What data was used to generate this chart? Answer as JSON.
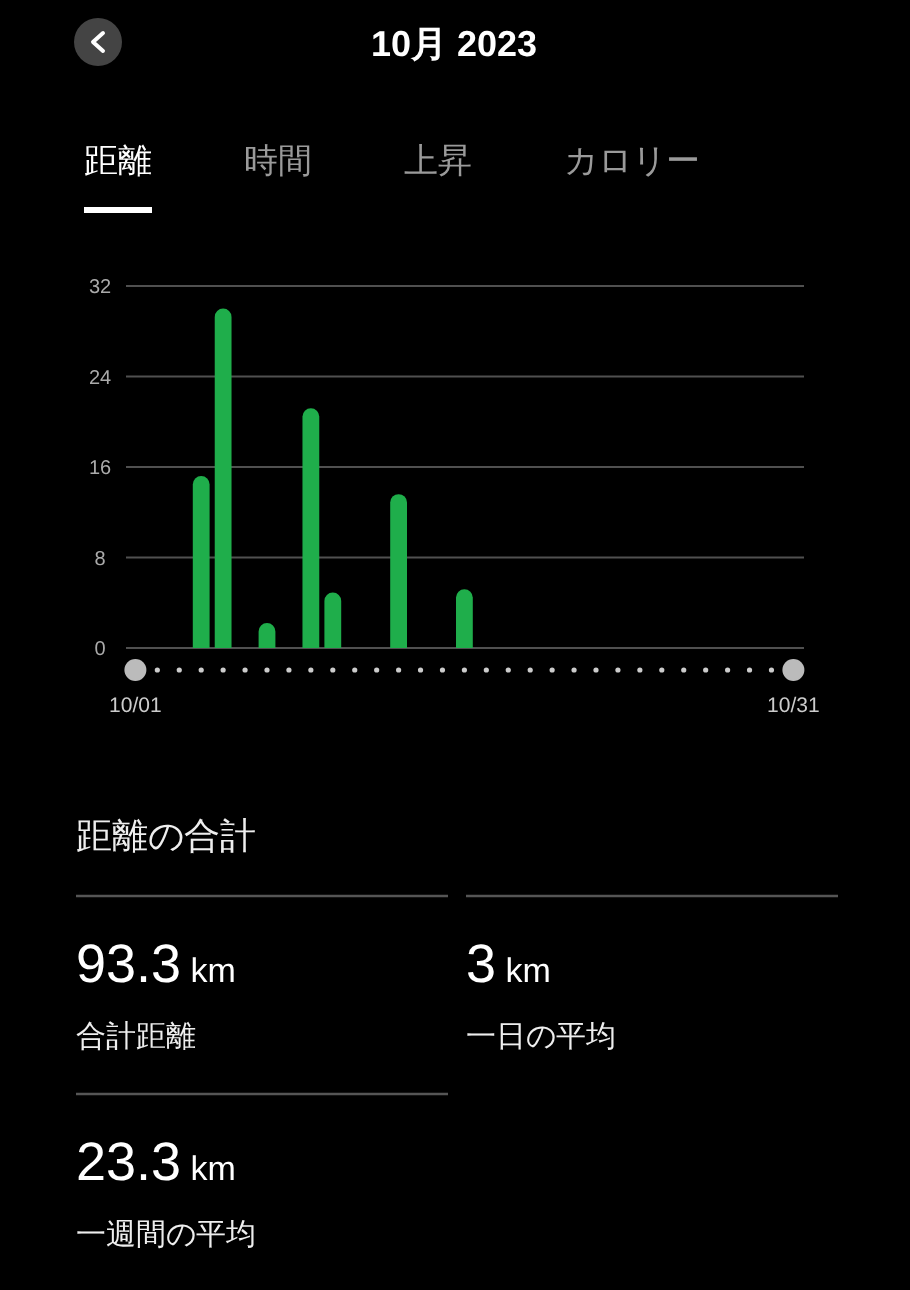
{
  "chart_data": [
    {
      "type": "bar",
      "title": "10月 2023",
      "annotations": [
        "距離",
        "時間",
        "上昇",
        "カロリー"
      ],
      "categories": [
        "10/01",
        null,
        null,
        null,
        null,
        null,
        null,
        null,
        null,
        null,
        null,
        null,
        null,
        null,
        null,
        null,
        null,
        null,
        null,
        null,
        null,
        null,
        null,
        null,
        null,
        null,
        null,
        null,
        null,
        null,
        "10/31"
      ],
      "values": [
        null,
        null,
        null,
        15.2,
        30,
        null,
        2.2,
        null,
        21.2,
        4.9,
        null,
        null,
        13.6,
        null,
        null,
        5.2,
        null,
        null,
        null,
        null,
        null,
        null,
        null,
        null,
        null,
        null,
        null,
        null,
        null,
        null,
        null
      ],
      "color": "#1fae4b",
      "ylim": [
        0,
        32
      ],
      "yticks": [
        0,
        8,
        16,
        24,
        32
      ],
      "grid": "y"
    },
    {
      "type": "other",
      "title": "距離の合計",
      "annotations": [
        "93.3 km",
        "合計距離",
        "3 km",
        "一日の平均",
        "23.3 km",
        "一週間の平均"
      ]
    }
  ]
}
